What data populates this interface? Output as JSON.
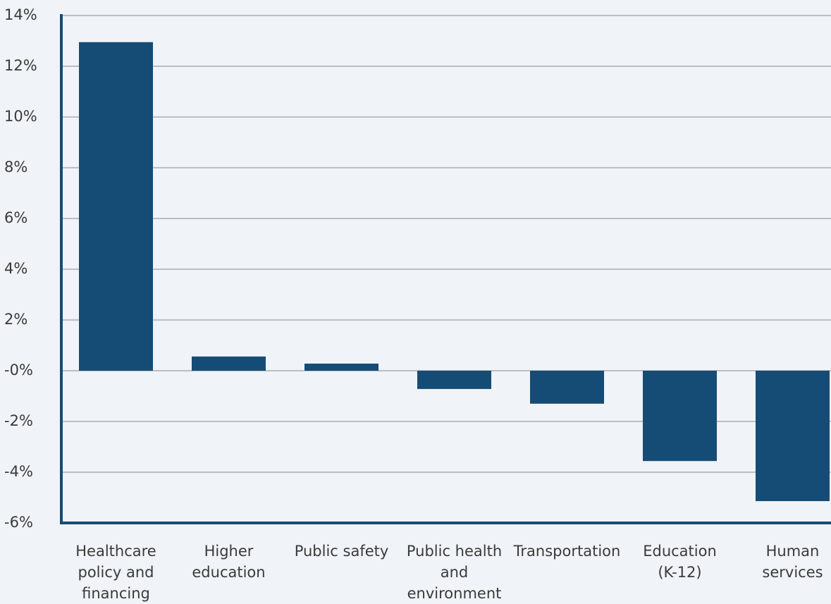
{
  "chart_data": {
    "type": "bar",
    "categories": [
      "Healthcare policy and financing",
      "Higher education",
      "Public safety",
      "Public health and environment",
      "Transportation",
      "Education (K-12)",
      "Human services"
    ],
    "values": [
      12.95,
      0.56,
      0.28,
      -0.72,
      -1.3,
      -3.56,
      -5.14
    ],
    "color": "#154c75",
    "ylim": [
      -6,
      14
    ],
    "yticks": [
      {
        "value": -6,
        "label": "-6%"
      },
      {
        "value": -4,
        "label": "-4%"
      },
      {
        "value": -2,
        "label": "-2%"
      },
      {
        "value": 0,
        "label": "-0%"
      },
      {
        "value": 2,
        "label": "2%"
      },
      {
        "value": 4,
        "label": "4%"
      },
      {
        "value": 6,
        "label": "6%"
      },
      {
        "value": 8,
        "label": "8%"
      },
      {
        "value": 10,
        "label": "10%"
      },
      {
        "value": 12,
        "label": "12%"
      },
      {
        "value": 14,
        "label": "14%"
      }
    ],
    "grid": true
  }
}
